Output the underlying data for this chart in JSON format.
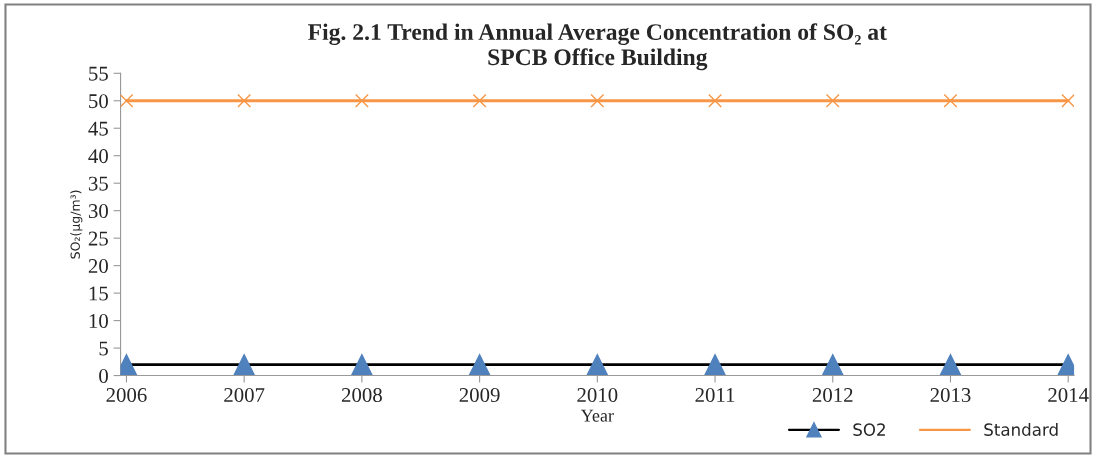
{
  "chart_data": {
    "type": "line",
    "title": "Fig. 2.1 Trend in Annual Average Concentration of SO₂ at\nSPCB Office Building",
    "xlabel": "Year",
    "ylabel": "SO₂(μg/m³)",
    "categories": [
      "2006",
      "2007",
      "2008",
      "2009",
      "2010",
      "2011",
      "2012",
      "2013",
      "2014"
    ],
    "series": [
      {
        "name": "SO2",
        "color": "#000000",
        "colors": [
          "#4f81bd",
          "#4f81bd",
          "#4f81bd",
          "#4f81bd",
          "#4f81bd",
          "#4f81bd",
          "#4f81bd",
          "#4f81bd",
          "#4f81bd"
        ],
        "marker": "triangle",
        "values": [
          2,
          2,
          2,
          2,
          2,
          2,
          2,
          2,
          2
        ]
      },
      {
        "name": "Standard",
        "color": "#f79646",
        "marker": "cross",
        "values": [
          50,
          50,
          50,
          50,
          50,
          50,
          50,
          50,
          50
        ]
      }
    ],
    "ylim": [
      0,
      55
    ],
    "yticks": [
      0,
      5,
      10,
      15,
      20,
      25,
      30,
      35,
      40,
      45,
      50,
      55
    ],
    "grid": false,
    "legend": "bottom right"
  }
}
